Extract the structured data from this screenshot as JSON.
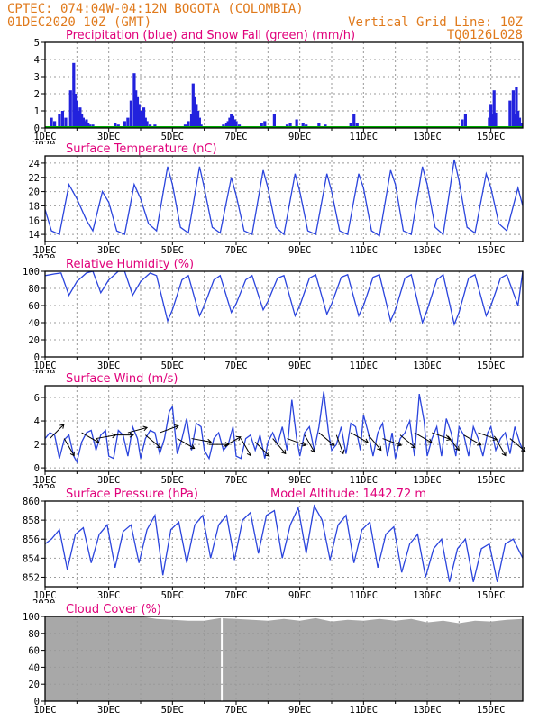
{
  "header": {
    "left1": "CPTEC:   074:04W-04:12N  BOGOTA (COLOMBIA)",
    "left2": "01DEC2020 10Z (GMT)",
    "right1": "Vertical Grid Line: 10Z",
    "right2": "TQ0126L028"
  },
  "colors": {
    "header": "#e07a1c",
    "title": "#e0007a",
    "precip": "#2222dd",
    "snow": "#00aa00",
    "line": "#2a44dd",
    "wind_vec": "#000000",
    "cloud": "#a8a8a8"
  },
  "x_axis": {
    "start_day": 1,
    "end_day": 16,
    "tick_days": [
      1,
      3,
      5,
      7,
      9,
      11,
      13,
      15
    ],
    "tick_labels": [
      "1DEC",
      "3DEC",
      "5DEC",
      "7DEC",
      "9DEC",
      "11DEC",
      "13DEC",
      "15DEC"
    ],
    "year_fragment": "2020"
  },
  "chart_data": [
    {
      "type": "bar",
      "title": "Precipitation (blue) and Snow Fall (green) (mm/h)",
      "ylim": [
        0,
        5
      ],
      "yticks": [
        0,
        1,
        2,
        3,
        4,
        5
      ],
      "series": [
        {
          "name": "Precipitation",
          "color": "blue"
        },
        {
          "name": "Snow Fall",
          "color": "green"
        }
      ],
      "x": [
        1.2,
        1.3,
        1.45,
        1.55,
        1.65,
        1.8,
        1.9,
        1.95,
        2.0,
        2.05,
        2.1,
        2.15,
        2.2,
        2.25,
        2.3,
        2.35,
        2.4,
        2.5,
        3.2,
        3.3,
        3.5,
        3.6,
        3.7,
        3.8,
        3.85,
        3.9,
        3.95,
        4.0,
        4.05,
        4.1,
        4.15,
        4.2,
        4.3,
        4.45,
        5.4,
        5.5,
        5.6,
        5.65,
        5.7,
        5.75,
        5.8,
        5.85,
        5.9,
        6.6,
        6.7,
        6.75,
        6.8,
        6.85,
        6.9,
        6.95,
        7.0,
        7.1,
        7.8,
        7.9,
        8.2,
        8.6,
        8.7,
        8.9,
        9.1,
        9.2,
        9.6,
        9.8,
        10.6,
        10.7,
        10.8,
        14.1,
        14.2,
        14.95,
        15.0,
        15.05,
        15.1,
        15.15,
        15.6,
        15.7,
        15.75,
        15.8,
        15.85,
        15.9,
        15.95
      ],
      "values": [
        0.6,
        0.4,
        0.8,
        1.0,
        0.6,
        2.2,
        3.8,
        2.0,
        1.6,
        1.0,
        1.2,
        0.8,
        0.6,
        0.4,
        0.5,
        0.3,
        0.2,
        0.2,
        0.3,
        0.2,
        0.4,
        0.6,
        1.6,
        3.2,
        2.2,
        1.8,
        1.4,
        1.0,
        0.8,
        1.2,
        0.6,
        0.4,
        0.2,
        0.2,
        0.2,
        0.4,
        0.8,
        2.6,
        1.8,
        1.4,
        1.0,
        0.6,
        0.2,
        0.2,
        0.3,
        0.4,
        0.6,
        0.8,
        0.7,
        0.5,
        0.4,
        0.2,
        0.3,
        0.4,
        0.8,
        0.2,
        0.3,
        0.5,
        0.3,
        0.2,
        0.3,
        0.2,
        0.3,
        0.8,
        0.3,
        0.5,
        0.8,
        0.6,
        1.4,
        0.8,
        2.2,
        0.9,
        1.6,
        2.2,
        0.8,
        2.4,
        1.0,
        0.6,
        0.3
      ]
    },
    {
      "type": "line",
      "title": "Surface Temperature (nC)",
      "ylim": [
        13,
        25
      ],
      "yticks": [
        14,
        16,
        18,
        20,
        22,
        24
      ],
      "x": [
        1.0,
        1.2,
        1.45,
        1.75,
        2.0,
        2.3,
        2.5,
        2.8,
        3.0,
        3.25,
        3.5,
        3.8,
        4.0,
        4.25,
        4.5,
        4.85,
        5.0,
        5.25,
        5.5,
        5.85,
        6.0,
        6.25,
        6.5,
        6.85,
        7.0,
        7.25,
        7.5,
        7.85,
        8.0,
        8.25,
        8.5,
        8.85,
        9.0,
        9.25,
        9.5,
        9.85,
        10.0,
        10.25,
        10.5,
        10.85,
        11.0,
        11.25,
        11.5,
        11.85,
        12.0,
        12.25,
        12.5,
        12.85,
        13.0,
        13.25,
        13.5,
        13.85,
        14.0,
        14.25,
        14.5,
        14.85,
        15.0,
        15.25,
        15.5,
        15.85,
        16.0
      ],
      "values": [
        17.5,
        14.5,
        14.0,
        21.0,
        19.0,
        16.0,
        14.5,
        20.0,
        18.5,
        14.5,
        14.0,
        21.0,
        19.0,
        15.5,
        14.5,
        23.5,
        21.0,
        15.0,
        14.2,
        23.5,
        20.5,
        15.0,
        14.2,
        22.0,
        19.5,
        14.5,
        14.0,
        23.0,
        20.5,
        15.0,
        14.0,
        22.5,
        20.0,
        14.5,
        14.0,
        22.5,
        20.0,
        14.5,
        14.0,
        22.5,
        20.5,
        14.5,
        13.8,
        23.0,
        21.0,
        14.5,
        14.0,
        23.5,
        21.0,
        15.0,
        14.0,
        24.5,
        21.5,
        15.0,
        14.2,
        22.5,
        20.5,
        15.5,
        14.5,
        20.5,
        18.0
      ]
    },
    {
      "type": "line",
      "title": "Relative Humidity (%)",
      "ylim": [
        0,
        100
      ],
      "yticks": [
        0,
        20,
        40,
        60,
        80,
        100
      ],
      "x": [
        1.0,
        1.3,
        1.5,
        1.75,
        2.0,
        2.3,
        2.5,
        2.75,
        3.0,
        3.3,
        3.5,
        3.75,
        4.0,
        4.3,
        4.5,
        4.85,
        5.0,
        5.3,
        5.5,
        5.85,
        6.0,
        6.3,
        6.5,
        6.85,
        7.0,
        7.3,
        7.5,
        7.85,
        8.0,
        8.3,
        8.5,
        8.85,
        9.0,
        9.3,
        9.5,
        9.85,
        10.0,
        10.3,
        10.5,
        10.85,
        11.0,
        11.3,
        11.5,
        11.85,
        12.0,
        12.3,
        12.5,
        12.85,
        13.0,
        13.3,
        13.5,
        13.85,
        14.0,
        14.3,
        14.5,
        14.85,
        15.0,
        15.3,
        15.5,
        15.85,
        16.0
      ],
      "values": [
        95,
        97,
        98,
        72,
        88,
        98,
        100,
        75,
        90,
        100,
        100,
        72,
        88,
        98,
        95,
        42,
        55,
        90,
        95,
        48,
        60,
        90,
        95,
        52,
        62,
        90,
        95,
        55,
        65,
        92,
        95,
        48,
        60,
        92,
        96,
        50,
        62,
        93,
        96,
        48,
        60,
        93,
        96,
        42,
        55,
        92,
        96,
        40,
        55,
        90,
        96,
        38,
        52,
        92,
        96,
        48,
        60,
        92,
        96,
        60,
        100
      ]
    },
    {
      "type": "line",
      "title": "Surface Wind (m/s)",
      "ylim": [
        -0.3,
        7
      ],
      "yticks": [
        0,
        2,
        4,
        6
      ],
      "x": [
        1.0,
        1.15,
        1.3,
        1.45,
        1.6,
        1.75,
        1.9,
        2.0,
        2.15,
        2.3,
        2.45,
        2.6,
        2.75,
        2.9,
        3.0,
        3.15,
        3.3,
        3.45,
        3.6,
        3.75,
        3.9,
        4.0,
        4.15,
        4.3,
        4.45,
        4.6,
        4.75,
        4.9,
        5.0,
        5.15,
        5.3,
        5.45,
        5.6,
        5.75,
        5.9,
        6.0,
        6.15,
        6.3,
        6.45,
        6.6,
        6.75,
        6.9,
        7.0,
        7.15,
        7.3,
        7.45,
        7.6,
        7.75,
        7.9,
        8.0,
        8.15,
        8.3,
        8.45,
        8.6,
        8.75,
        8.9,
        9.0,
        9.15,
        9.3,
        9.45,
        9.6,
        9.75,
        9.9,
        10.0,
        10.15,
        10.3,
        10.45,
        10.6,
        10.75,
        10.9,
        11.0,
        11.15,
        11.3,
        11.45,
        11.6,
        11.75,
        11.9,
        12.0,
        12.15,
        12.3,
        12.45,
        12.6,
        12.75,
        12.9,
        13.0,
        13.15,
        13.3,
        13.45,
        13.6,
        13.75,
        13.9,
        14.0,
        14.15,
        14.3,
        14.45,
        14.6,
        14.75,
        14.9,
        15.0,
        15.15,
        15.3,
        15.45,
        15.6,
        15.75,
        15.9,
        16.0
      ],
      "values": [
        2.5,
        3.0,
        2.8,
        0.8,
        2.4,
        2.8,
        1.0,
        0.5,
        2.2,
        3.0,
        3.2,
        1.5,
        2.8,
        3.2,
        1.0,
        0.8,
        3.2,
        2.8,
        1.0,
        3.5,
        2.5,
        0.8,
        2.5,
        3.2,
        3.0,
        1.2,
        2.5,
        4.8,
        5.2,
        1.2,
        2.5,
        4.2,
        1.5,
        3.8,
        3.5,
        1.5,
        0.8,
        2.5,
        3.0,
        1.5,
        2.0,
        3.5,
        1.0,
        0.8,
        2.5,
        2.8,
        1.5,
        2.8,
        0.8,
        2.2,
        3.0,
        2.0,
        3.5,
        1.5,
        5.8,
        2.5,
        1.0,
        3.0,
        3.5,
        1.5,
        3.5,
        6.5,
        3.0,
        1.5,
        2.0,
        3.5,
        1.2,
        3.8,
        3.5,
        1.5,
        4.5,
        3.0,
        1.0,
        3.0,
        3.8,
        1.0,
        3.0,
        0.8,
        2.5,
        3.0,
        4.0,
        1.0,
        6.3,
        4.0,
        1.0,
        2.5,
        3.5,
        1.0,
        4.2,
        3.0,
        1.0,
        3.5,
        2.8,
        1.0,
        3.5,
        2.5,
        1.0,
        3.0,
        3.5,
        1.5,
        2.5,
        3.0,
        1.2,
        3.5,
        2.2,
        1.5
      ],
      "arrows": {
        "x": [
          1.15,
          1.6,
          2.15,
          2.6,
          3.15,
          3.6,
          4.15,
          4.6,
          5.15,
          5.6,
          6.15,
          6.6,
          7.15,
          7.6,
          8.15,
          8.6,
          9.15,
          9.6,
          10.15,
          10.6,
          11.15,
          11.6,
          12.15,
          12.6,
          13.15,
          13.6,
          14.15,
          14.6,
          15.15,
          15.6
        ],
        "dir_deg": [
          45,
          -60,
          -30,
          10,
          0,
          15,
          -40,
          20,
          -30,
          -10,
          0,
          30,
          -60,
          -45,
          -50,
          -20,
          -60,
          -40,
          -70,
          -30,
          -50,
          -20,
          -40,
          -30,
          -20,
          -50,
          -30,
          -20,
          -60,
          -40
        ],
        "speed": [
          2.5,
          2.5,
          3.0,
          2.5,
          2.8,
          3.0,
          2.8,
          3.0,
          2.5,
          2.5,
          2.0,
          1.8,
          2.5,
          2.2,
          2.5,
          2.5,
          2.8,
          3.0,
          2.8,
          3.0,
          2.8,
          2.5,
          2.8,
          3.0,
          3.0,
          2.8,
          2.8,
          3.0,
          2.5,
          2.5
        ]
      }
    },
    {
      "type": "line",
      "title": "Surface Pressure (hPa)",
      "subtitle": "Model Altitude: 1442.72 m",
      "ylim": [
        851,
        860
      ],
      "yticks": [
        852,
        854,
        856,
        858,
        860
      ],
      "x": [
        1.0,
        1.2,
        1.45,
        1.7,
        1.95,
        2.2,
        2.45,
        2.7,
        2.95,
        3.2,
        3.45,
        3.7,
        3.95,
        4.2,
        4.45,
        4.7,
        4.95,
        5.2,
        5.45,
        5.7,
        5.95,
        6.2,
        6.45,
        6.7,
        6.95,
        7.2,
        7.45,
        7.7,
        7.95,
        8.2,
        8.45,
        8.7,
        8.95,
        9.2,
        9.45,
        9.7,
        9.95,
        10.2,
        10.45,
        10.7,
        10.95,
        11.2,
        11.45,
        11.7,
        11.95,
        12.2,
        12.45,
        12.7,
        12.95,
        13.2,
        13.45,
        13.7,
        13.95,
        14.2,
        14.45,
        14.7,
        14.95,
        15.2,
        15.45,
        15.7,
        16.0
      ],
      "values": [
        855.5,
        856.0,
        857.0,
        852.8,
        856.5,
        857.2,
        853.5,
        856.5,
        857.5,
        853.0,
        856.8,
        857.5,
        853.5,
        857.0,
        858.5,
        852.2,
        857.0,
        857.8,
        853.5,
        857.5,
        858.5,
        854.0,
        857.5,
        858.5,
        853.8,
        858.0,
        858.8,
        854.5,
        858.5,
        859.0,
        854.0,
        857.5,
        859.3,
        854.5,
        859.5,
        858.0,
        853.8,
        857.5,
        858.5,
        853.5,
        857.0,
        857.8,
        853.0,
        856.5,
        857.3,
        852.5,
        855.5,
        856.5,
        852.0,
        855.0,
        856.0,
        851.5,
        855.0,
        856.0,
        851.5,
        855.0,
        855.5,
        851.5,
        855.5,
        856.0,
        854.0
      ]
    },
    {
      "type": "bar",
      "title": "Cloud Cover (%)",
      "ylim": [
        0,
        100
      ],
      "yticks": [
        0,
        20,
        40,
        60,
        80,
        100
      ],
      "note_gap_day": 6.55,
      "x": [
        1.0,
        1.5,
        2.0,
        2.5,
        3.0,
        3.5,
        4.0,
        4.5,
        5.0,
        5.5,
        6.0,
        6.5,
        7.0,
        7.5,
        8.0,
        8.5,
        9.0,
        9.5,
        10.0,
        10.5,
        11.0,
        11.5,
        12.0,
        12.5,
        13.0,
        13.5,
        14.0,
        14.5,
        15.0,
        15.5,
        16.0
      ],
      "values": [
        100,
        100,
        100,
        100,
        100,
        99,
        100,
        97,
        96,
        95,
        95,
        98,
        97,
        96,
        95,
        97,
        95,
        98,
        94,
        96,
        95,
        97,
        95,
        97,
        93,
        95,
        92,
        95,
        94,
        96,
        97
      ]
    }
  ]
}
